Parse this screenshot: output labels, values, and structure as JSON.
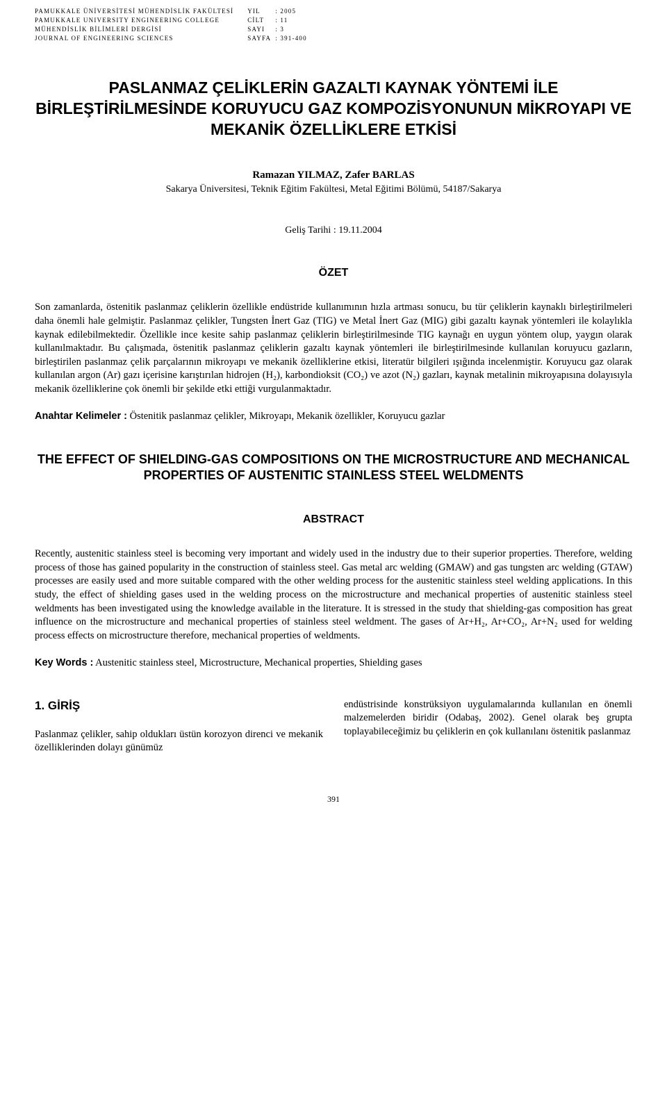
{
  "header": {
    "left_lines": [
      "PAMUKKALE ÜNİVERSİTESİ MÜHENDİSLİK FAKÜLTESİ",
      "PAMUKKALE UNIVERSITY ENGINEERING COLLEGE",
      "MÜHENDİSLİK BİLİMLERİ DERGİSİ",
      "JOURNAL OF ENGINEERING SCIENCES"
    ],
    "meta_labels": [
      "YIL",
      "CİLT",
      "SAYI",
      "SAYFA"
    ],
    "meta_values": [
      ": 2005",
      ": 11",
      ": 3",
      ": 391-400"
    ]
  },
  "title": "PASLANMAZ ÇELİKLERİN GAZALTI KAYNAK YÖNTEMİ İLE BİRLEŞTİRİLMESİNDE KORUYUCU GAZ KOMPOZİSYONUNUN MİKROYAPI VE MEKANİK ÖZELLİKLERE ETKİSİ",
  "authors": "Ramazan YILMAZ, Zafer BARLAS",
  "affiliation": "Sakarya Üniversitesi, Teknik Eğitim Fakültesi, Metal Eğitimi Bölümü, 54187/Sakarya",
  "received": "Geliş Tarihi : 19.11.2004",
  "ozet_heading": "ÖZET",
  "ozet_body": "Son zamanlarda, östenitik paslanmaz çeliklerin özellikle endüstride kullanımının hızla artması sonucu, bu tür çeliklerin kaynaklı birleştirilmeleri daha önemli hale gelmiştir. Paslanmaz çelikler, Tungsten İnert Gaz (TIG) ve Metal İnert Gaz (MIG) gibi gazaltı kaynak yöntemleri ile kolaylıkla kaynak edilebilmektedir. Özellikle ince kesite sahip paslanmaz çeliklerin birleştirilmesinde TIG kaynağı en uygun yöntem olup, yaygın olarak kullanılmaktadır. Bu çalışmada, östenitik paslanmaz çeliklerin gazaltı kaynak yöntemleri ile birleştirilmesinde kullanılan koruyucu gazların, birleştirilen paslanmaz çelik parçalarının mikroyapı ve mekanik özelliklerine etkisi, literatür bilgileri ışığında incelenmiştir. Koruyucu gaz olarak kullanılan argon (Ar) gazı içerisine karıştırılan hidrojen (H₂), karbondioksit (CO₂) ve azot (N₂) gazları, kaynak metalinin mikroyapısına dolayısıyla mekanik özelliklerine çok önemli bir şekilde etki ettiği vurgulanmaktadır.",
  "anahtar_label": "Anahtar Kelimeler :",
  "anahtar_text": " Östenitik paslanmaz çelikler, Mikroyapı, Mekanik özellikler, Koruyucu gazlar",
  "en_title": "THE EFFECT OF SHIELDING-GAS COMPOSITIONS ON THE MICROSTRUCTURE AND MECHANICAL PROPERTIES OF AUSTENITIC STAINLESS STEEL WELDMENTS",
  "abstract_heading": "ABSTRACT",
  "abstract_body": "Recently, austenitic stainless steel is becoming very important and widely used in the industry due to their superior properties.  Therefore, welding process of those has gained popularity in the construction of stainless steel. Gas metal arc welding (GMAW) and gas tungsten arc welding (GTAW) processes are easily used and more suitable compared with the other welding process for the austenitic stainless steel welding applications. In this study, the effect of shielding gases used in the welding process on the microstructure and mechanical properties of austenitic stainless steel weldments has been investigated using the knowledge available in the literature. It is stressed in the study that shielding-gas composition has great influence on the microstructure and mechanical properties of stainless steel weldment. The gases of Ar+H₂, Ar+CO₂, Ar+N₂ used for welding process effects on microstructure therefore, mechanical properties of weldments.",
  "keywords_label": "Key Words :",
  "keywords_text": " Austenitic stainless steel, Microstructure, Mechanical properties, Shielding gases",
  "intro_heading": "1.  GİRİŞ",
  "intro_col1": "Paslanmaz çelikler, sahip oldukları üstün korozyon direnci ve mekanik özelliklerinden dolayı günümüz",
  "intro_col2": "endüstrisinde konstrüksiyon uygulamalarında kullanılan en önemli malzemelerden biridir (Odabaş, 2002). Genel olarak beş grupta toplayabileceğimiz bu çeliklerin en çok kullanılanı östenitik paslanmaz",
  "page_number": "391"
}
